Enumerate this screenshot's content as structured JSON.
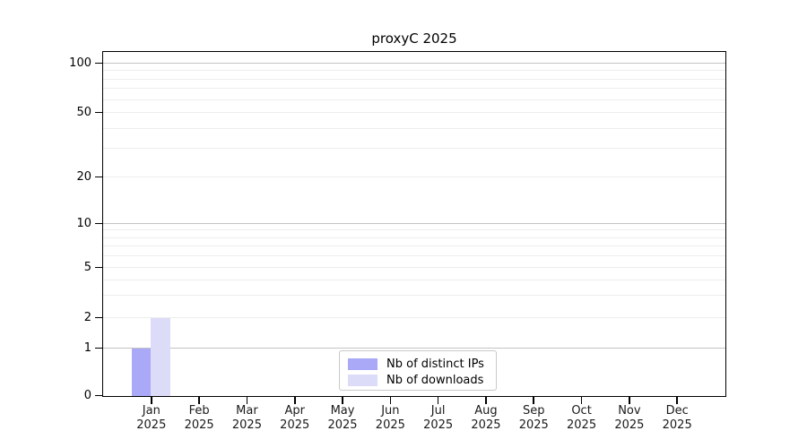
{
  "chart_data": {
    "type": "bar",
    "title": "proxyC 2025",
    "categories": [
      "Jan",
      "Feb",
      "Mar",
      "Apr",
      "May",
      "Jun",
      "Jul",
      "Aug",
      "Sep",
      "Oct",
      "Nov",
      "Dec"
    ],
    "x_tick_sublabel": "2025",
    "series": [
      {
        "name": "Nb of distinct IPs",
        "color": "#a9a9f7",
        "values": [
          1,
          0,
          0,
          0,
          0,
          0,
          0,
          0,
          0,
          0,
          0,
          0
        ]
      },
      {
        "name": "Nb of downloads",
        "color": "#dcdcf8",
        "values": [
          2,
          0,
          0,
          0,
          0,
          0,
          0,
          0,
          0,
          0,
          0,
          0
        ]
      }
    ],
    "y_axis": {
      "scale": "symlog",
      "ticks": [
        0,
        1,
        2,
        5,
        10,
        20,
        50,
        100
      ],
      "minor_ticks": [
        3,
        4,
        6,
        7,
        8,
        9,
        30,
        40,
        60,
        70,
        80,
        90
      ],
      "range": [
        0,
        115
      ]
    },
    "legend": {
      "position": "lower center",
      "entries": [
        "Nb of distinct IPs",
        "Nb of downloads"
      ]
    },
    "grid": "on",
    "colors": {
      "bar_distinct_ips": "#a9a9f7",
      "bar_downloads": "#dcdcf8",
      "grid_major": "#c3c3c3",
      "grid_minor": "#ededed",
      "axis": "#000000",
      "legend_border": "#c9c9c9",
      "text": "#000000",
      "background": "#ffffff"
    }
  }
}
